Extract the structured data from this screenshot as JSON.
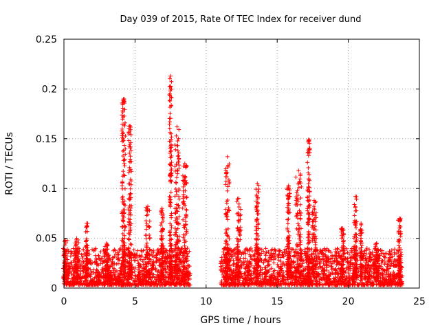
{
  "chart_data": {
    "type": "scatter",
    "title": "Day 039 of 2015, Rate Of TEC Index for receiver dund",
    "xlabel": "GPS time / hours",
    "ylabel": "ROTI / TECUs",
    "xlim": [
      0,
      25
    ],
    "ylim": [
      0,
      0.25
    ],
    "xticks": [
      0,
      5,
      10,
      15,
      20,
      25
    ],
    "yticks": [
      0,
      0.05,
      0.1,
      0.15,
      0.2,
      0.25
    ],
    "ytick_labels": [
      "0",
      "0.05",
      "0.1",
      "0.15",
      "0.2",
      "0.25"
    ],
    "grid": true,
    "marker": "+",
    "color": "#ff0000",
    "series": [
      {
        "segments": [
          {
            "x_range": [
              0.0,
              8.9
            ],
            "baseline": [
              0.003,
              0.04
            ]
          },
          {
            "x_range": [
              11.0,
              23.8
            ],
            "baseline": [
              0.003,
              0.04
            ]
          }
        ],
        "bursts": [
          {
            "x": 0.1,
            "width": 0.3,
            "peak": 0.048
          },
          {
            "x": 0.9,
            "width": 0.3,
            "peak": 0.05
          },
          {
            "x": 1.6,
            "width": 0.15,
            "peak": 0.065
          },
          {
            "x": 3.0,
            "width": 0.3,
            "peak": 0.045
          },
          {
            "x": 4.2,
            "width": 0.25,
            "peak": 0.19
          },
          {
            "x": 4.65,
            "width": 0.2,
            "peak": 0.163
          },
          {
            "x": 5.9,
            "width": 0.3,
            "peak": 0.082
          },
          {
            "x": 6.9,
            "width": 0.2,
            "peak": 0.08
          },
          {
            "x": 7.5,
            "width": 0.15,
            "peak": 0.213
          },
          {
            "x": 7.95,
            "width": 0.3,
            "peak": 0.162
          },
          {
            "x": 8.5,
            "width": 0.3,
            "peak": 0.125
          },
          {
            "x": 11.5,
            "width": 0.3,
            "peak": 0.132
          },
          {
            "x": 12.3,
            "width": 0.3,
            "peak": 0.09
          },
          {
            "x": 13.6,
            "width": 0.2,
            "peak": 0.105
          },
          {
            "x": 15.8,
            "width": 0.2,
            "peak": 0.103
          },
          {
            "x": 16.5,
            "width": 0.4,
            "peak": 0.118
          },
          {
            "x": 17.2,
            "width": 0.2,
            "peak": 0.149
          },
          {
            "x": 17.6,
            "width": 0.3,
            "peak": 0.088
          },
          {
            "x": 19.6,
            "width": 0.2,
            "peak": 0.06
          },
          {
            "x": 20.5,
            "width": 0.2,
            "peak": 0.092
          },
          {
            "x": 20.9,
            "width": 0.15,
            "peak": 0.065
          },
          {
            "x": 22.0,
            "width": 0.3,
            "peak": 0.045
          },
          {
            "x": 23.6,
            "width": 0.2,
            "peak": 0.07
          }
        ]
      }
    ]
  }
}
